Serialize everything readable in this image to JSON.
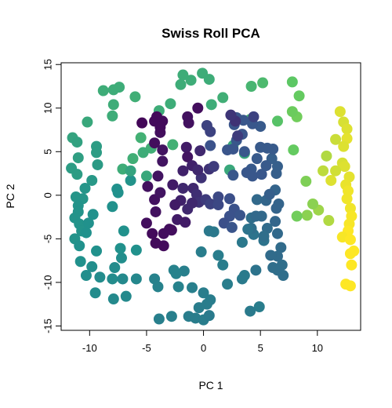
{
  "chart_data": {
    "type": "scatter",
    "title": "Swiss Roll PCA",
    "xlabel": "PC 1",
    "ylabel": "PC 2",
    "xlim": [
      -12.5,
      13.8
    ],
    "ylim": [
      -15.5,
      15.2
    ],
    "xticks": [
      -10,
      -5,
      0,
      5,
      10
    ],
    "yticks": [
      -15,
      -10,
      -5,
      0,
      5,
      10,
      15
    ],
    "x_tick_labels": [
      "-10",
      "-5",
      "0",
      "5",
      "10"
    ],
    "y_tick_labels": [
      "-15",
      "-10",
      "-5",
      "0",
      "5",
      "10",
      "15"
    ],
    "grid": false,
    "legend": "none",
    "color_scale": "viridis",
    "palette": [
      "#440154",
      "#3b528b",
      "#21918c",
      "#5ec962",
      "#fde725"
    ],
    "points": [
      {
        "x": 12.0,
        "y": 9.6,
        "c": 0.95
      },
      {
        "x": 12.3,
        "y": 8.4,
        "c": 0.94
      },
      {
        "x": 12.6,
        "y": 7.6,
        "c": 0.95
      },
      {
        "x": 12.6,
        "y": 6.5,
        "c": 0.96
      },
      {
        "x": 12.3,
        "y": 5.6,
        "c": 0.95
      },
      {
        "x": 11.6,
        "y": 6.4,
        "c": 0.92
      },
      {
        "x": 12.2,
        "y": 3.7,
        "c": 0.94
      },
      {
        "x": 12.4,
        "y": 3.3,
        "c": 0.95
      },
      {
        "x": 11.6,
        "y": 2.8,
        "c": 0.93
      },
      {
        "x": 12.8,
        "y": 2.1,
        "c": 0.96
      },
      {
        "x": 12.5,
        "y": 1.2,
        "c": 0.97
      },
      {
        "x": 12.7,
        "y": 0.5,
        "c": 0.98
      },
      {
        "x": 12.6,
        "y": -0.4,
        "c": 0.98
      },
      {
        "x": 12.9,
        "y": -1.5,
        "c": 0.98
      },
      {
        "x": 13.0,
        "y": -2.4,
        "c": 0.99
      },
      {
        "x": 12.8,
        "y": -3.3,
        "c": 0.99
      },
      {
        "x": 12.7,
        "y": -4.1,
        "c": 1.0
      },
      {
        "x": 12.2,
        "y": -4.8,
        "c": 0.99
      },
      {
        "x": 12.9,
        "y": -5.1,
        "c": 1.0
      },
      {
        "x": 13.2,
        "y": -6.4,
        "c": 1.0
      },
      {
        "x": 12.9,
        "y": -6.7,
        "c": 1.0
      },
      {
        "x": 13.0,
        "y": -8.0,
        "c": 1.0
      },
      {
        "x": 12.5,
        "y": -10.2,
        "c": 1.0
      },
      {
        "x": 12.9,
        "y": -10.4,
        "c": 1.0
      },
      {
        "x": 11.2,
        "y": 1.7,
        "c": 0.95
      },
      {
        "x": 10.5,
        "y": 2.8,
        "c": 0.9
      },
      {
        "x": 10.8,
        "y": 4.5,
        "c": 0.88
      },
      {
        "x": 11.0,
        "y": -2.9,
        "c": 0.88
      },
      {
        "x": 10.1,
        "y": -1.7,
        "c": 0.85
      },
      {
        "x": 9.6,
        "y": -1.0,
        "c": 0.82
      },
      {
        "x": 9.1,
        "y": -2.3,
        "c": 0.82
      },
      {
        "x": 8.2,
        "y": -2.4,
        "c": 0.78
      },
      {
        "x": 9.0,
        "y": 1.6,
        "c": 0.8
      },
      {
        "x": 7.9,
        "y": 5.2,
        "c": 0.76
      },
      {
        "x": 8.2,
        "y": 9.0,
        "c": 0.78
      },
      {
        "x": 7.8,
        "y": 9.6,
        "c": 0.77
      },
      {
        "x": 8.4,
        "y": 11.4,
        "c": 0.76
      },
      {
        "x": 7.8,
        "y": 13.0,
        "c": 0.74
      },
      {
        "x": 6.5,
        "y": 8.5,
        "c": 0.72
      },
      {
        "x": 5.2,
        "y": 12.9,
        "c": 0.68
      },
      {
        "x": 4.2,
        "y": 12.5,
        "c": 0.66
      },
      {
        "x": 4.1,
        "y": 8.7,
        "c": 0.66
      },
      {
        "x": 1.7,
        "y": 11.2,
        "c": 0.63
      },
      {
        "x": 0.7,
        "y": 10.4,
        "c": 0.62
      },
      {
        "x": 0.5,
        "y": 13.3,
        "c": 0.62
      },
      {
        "x": -0.1,
        "y": 14.0,
        "c": 0.62
      },
      {
        "x": -1.1,
        "y": 13.2,
        "c": 0.62
      },
      {
        "x": -1.8,
        "y": 13.8,
        "c": 0.62
      },
      {
        "x": -2.0,
        "y": 12.7,
        "c": 0.62
      },
      {
        "x": -2.9,
        "y": 10.5,
        "c": 0.62
      },
      {
        "x": -3.9,
        "y": 9.7,
        "c": 0.62
      },
      {
        "x": -2.7,
        "y": 5.8,
        "c": 0.64
      },
      {
        "x": -5.5,
        "y": 6.6,
        "c": 0.64
      },
      {
        "x": -4.6,
        "y": 5.4,
        "c": 0.63
      },
      {
        "x": -6.2,
        "y": 4.2,
        "c": 0.63
      },
      {
        "x": -7.1,
        "y": 3.0,
        "c": 0.62
      },
      {
        "x": -6.0,
        "y": 11.3,
        "c": 0.63
      },
      {
        "x": -7.4,
        "y": 12.4,
        "c": 0.62
      },
      {
        "x": -7.9,
        "y": 12.1,
        "c": 0.62
      },
      {
        "x": -8.8,
        "y": 12.0,
        "c": 0.62
      },
      {
        "x": -7.9,
        "y": 10.4,
        "c": 0.62
      },
      {
        "x": -8.0,
        "y": 9.1,
        "c": 0.62
      },
      {
        "x": -10.2,
        "y": 8.4,
        "c": 0.6
      },
      {
        "x": -5.3,
        "y": 4.9,
        "c": 0.62
      },
      {
        "x": -5.0,
        "y": 2.2,
        "c": 0.6
      },
      {
        "x": 2.3,
        "y": 2.9,
        "c": 0.6
      },
      {
        "x": 2.6,
        "y": 5.7,
        "c": 0.6
      },
      {
        "x": 3.6,
        "y": 4.8,
        "c": 0.6
      },
      {
        "x": -11.5,
        "y": 6.6,
        "c": 0.58
      },
      {
        "x": -11.1,
        "y": 6.1,
        "c": 0.57
      },
      {
        "x": -11.0,
        "y": 4.3,
        "c": 0.56
      },
      {
        "x": -11.6,
        "y": 3.1,
        "c": 0.55
      },
      {
        "x": -11.1,
        "y": 2.4,
        "c": 0.55
      },
      {
        "x": -9.4,
        "y": 5.6,
        "c": 0.55
      },
      {
        "x": -9.4,
        "y": 4.9,
        "c": 0.55
      },
      {
        "x": -9.3,
        "y": 3.5,
        "c": 0.54
      },
      {
        "x": -9.8,
        "y": 1.7,
        "c": 0.53
      },
      {
        "x": -10.4,
        "y": 0.8,
        "c": 0.52
      },
      {
        "x": -10.6,
        "y": -0.4,
        "c": 0.52
      },
      {
        "x": -11.2,
        "y": -0.2,
        "c": 0.52
      },
      {
        "x": -11.0,
        "y": -1.2,
        "c": 0.51
      },
      {
        "x": -11.0,
        "y": -1.9,
        "c": 0.51
      },
      {
        "x": -11.3,
        "y": -2.6,
        "c": 0.51
      },
      {
        "x": -10.9,
        "y": -3.3,
        "c": 0.51
      },
      {
        "x": -10.7,
        "y": -4.1,
        "c": 0.51
      },
      {
        "x": -11.3,
        "y": -5.0,
        "c": 0.51
      },
      {
        "x": -10.9,
        "y": -5.8,
        "c": 0.5
      },
      {
        "x": -10.3,
        "y": -4.3,
        "c": 0.5
      },
      {
        "x": -9.7,
        "y": -2.2,
        "c": 0.5
      },
      {
        "x": -10.1,
        "y": -3.2,
        "c": 0.5
      },
      {
        "x": -10.8,
        "y": -7.6,
        "c": 0.5
      },
      {
        "x": -9.4,
        "y": -6.4,
        "c": 0.5
      },
      {
        "x": -9.8,
        "y": -8.2,
        "c": 0.49
      },
      {
        "x": -10.3,
        "y": -9.2,
        "c": 0.49
      },
      {
        "x": -9.1,
        "y": -9.4,
        "c": 0.48
      },
      {
        "x": -7.2,
        "y": -7.2,
        "c": 0.49
      },
      {
        "x": -5.9,
        "y": -6.3,
        "c": 0.5
      },
      {
        "x": -7.3,
        "y": -6.1,
        "c": 0.5
      },
      {
        "x": -8.0,
        "y": -9.6,
        "c": 0.48
      },
      {
        "x": -7.1,
        "y": -9.6,
        "c": 0.47
      },
      {
        "x": -5.9,
        "y": -9.6,
        "c": 0.46
      },
      {
        "x": -9.5,
        "y": -11.2,
        "c": 0.48
      },
      {
        "x": -7.9,
        "y": -11.9,
        "c": 0.47
      },
      {
        "x": -6.8,
        "y": -11.6,
        "c": 0.47
      },
      {
        "x": -7.8,
        "y": -8.3,
        "c": 0.48
      },
      {
        "x": -7.0,
        "y": -4.1,
        "c": 0.5
      },
      {
        "x": -8.0,
        "y": -1.3,
        "c": 0.5
      },
      {
        "x": -7.6,
        "y": 0.7,
        "c": 0.5
      },
      {
        "x": -6.4,
        "y": 1.7,
        "c": 0.51
      },
      {
        "x": -7.5,
        "y": 0.3,
        "c": 0.5
      },
      {
        "x": -4.3,
        "y": -9.6,
        "c": 0.44
      },
      {
        "x": -4.0,
        "y": -10.5,
        "c": 0.44
      },
      {
        "x": -2.6,
        "y": -8.6,
        "c": 0.44
      },
      {
        "x": -1.7,
        "y": -8.7,
        "c": 0.43
      },
      {
        "x": -2.2,
        "y": -10.5,
        "c": 0.44
      },
      {
        "x": -1.0,
        "y": -10.6,
        "c": 0.43
      },
      {
        "x": 0.0,
        "y": -11.2,
        "c": 0.42
      },
      {
        "x": 0.3,
        "y": -12.5,
        "c": 0.42
      },
      {
        "x": -0.4,
        "y": -12.9,
        "c": 0.42
      },
      {
        "x": -3.9,
        "y": -14.2,
        "c": 0.43
      },
      {
        "x": -2.8,
        "y": -13.9,
        "c": 0.43
      },
      {
        "x": -1.3,
        "y": -13.9,
        "c": 0.42
      },
      {
        "x": -0.7,
        "y": -14.1,
        "c": 0.42
      },
      {
        "x": 0.0,
        "y": -14.3,
        "c": 0.42
      },
      {
        "x": 0.5,
        "y": -13.8,
        "c": 0.41
      },
      {
        "x": 2.1,
        "y": -10.2,
        "c": 0.42
      },
      {
        "x": 1.7,
        "y": -8.0,
        "c": 0.42
      },
      {
        "x": 3.6,
        "y": -9.2,
        "c": 0.41
      },
      {
        "x": 3.4,
        "y": -9.6,
        "c": 0.41
      },
      {
        "x": 4.9,
        "y": -12.8,
        "c": 0.42
      },
      {
        "x": 4.1,
        "y": -13.3,
        "c": 0.41
      },
      {
        "x": 4.6,
        "y": -8.6,
        "c": 0.38
      },
      {
        "x": 5.3,
        "y": -5.2,
        "c": 0.38
      },
      {
        "x": 4.4,
        "y": -4.5,
        "c": 0.38
      },
      {
        "x": 4.2,
        "y": -3.8,
        "c": 0.36
      },
      {
        "x": 4.2,
        "y": -2.6,
        "c": 0.36
      },
      {
        "x": 5.1,
        "y": -2.4,
        "c": 0.34
      },
      {
        "x": 4.7,
        "y": -0.5,
        "c": 0.34
      },
      {
        "x": 5.5,
        "y": -0.6,
        "c": 0.33
      },
      {
        "x": 6.6,
        "y": -1.0,
        "c": 0.32
      },
      {
        "x": 6.4,
        "y": -1.5,
        "c": 0.32
      },
      {
        "x": 6.3,
        "y": -3.0,
        "c": 0.33
      },
      {
        "x": 6.5,
        "y": -4.4,
        "c": 0.34
      },
      {
        "x": 6.8,
        "y": -6.0,
        "c": 0.35
      },
      {
        "x": 6.5,
        "y": -7.0,
        "c": 0.35
      },
      {
        "x": 6.9,
        "y": -8.0,
        "c": 0.36
      },
      {
        "x": 6.5,
        "y": -8.6,
        "c": 0.36
      },
      {
        "x": 7.0,
        "y": -9.2,
        "c": 0.36
      },
      {
        "x": 6.1,
        "y": -8.3,
        "c": 0.36
      },
      {
        "x": 5.9,
        "y": -6.9,
        "c": 0.35
      },
      {
        "x": 6.3,
        "y": 0.6,
        "c": 0.32
      },
      {
        "x": 6.4,
        "y": 2.5,
        "c": 0.3
      },
      {
        "x": 6.5,
        "y": 3.3,
        "c": 0.3
      },
      {
        "x": 6.0,
        "y": 4.2,
        "c": 0.3
      },
      {
        "x": 6.1,
        "y": 5.3,
        "c": 0.28
      },
      {
        "x": 5.0,
        "y": 5.5,
        "c": 0.28
      },
      {
        "x": 4.7,
        "y": 4.2,
        "c": 0.28
      },
      {
        "x": 4.2,
        "y": 3.0,
        "c": 0.28
      },
      {
        "x": 4.3,
        "y": 2.2,
        "c": 0.27
      },
      {
        "x": 5.1,
        "y": 2.4,
        "c": 0.27
      },
      {
        "x": 5.5,
        "y": 3.4,
        "c": 0.28
      },
      {
        "x": 5.0,
        "y": 7.9,
        "c": 0.28
      },
      {
        "x": 4.3,
        "y": 8.2,
        "c": 0.27
      },
      {
        "x": 3.5,
        "y": 8.6,
        "c": 0.27
      },
      {
        "x": 2.9,
        "y": 8.9,
        "c": 0.26
      },
      {
        "x": 2.7,
        "y": 8.1,
        "c": 0.26
      },
      {
        "x": 3.4,
        "y": 7.0,
        "c": 0.26
      },
      {
        "x": 2.9,
        "y": 6.3,
        "c": 0.27
      },
      {
        "x": 3.6,
        "y": 5.0,
        "c": 0.27
      },
      {
        "x": 2.6,
        "y": 2.3,
        "c": 0.27
      },
      {
        "x": 2.1,
        "y": 5.2,
        "c": 0.26
      },
      {
        "x": 0.6,
        "y": 5.7,
        "c": 0.25
      },
      {
        "x": 0.6,
        "y": 7.3,
        "c": 0.2
      },
      {
        "x": 0.3,
        "y": 8.0,
        "c": 0.2
      },
      {
        "x": -1.3,
        "y": 8.3,
        "c": 0.05
      },
      {
        "x": -1.5,
        "y": 5.5,
        "c": 0.08
      },
      {
        "x": -1.4,
        "y": 4.4,
        "c": 0.06
      },
      {
        "x": -1.0,
        "y": 3.4,
        "c": 0.1
      },
      {
        "x": -0.3,
        "y": 5.1,
        "c": 0.12
      },
      {
        "x": 0.5,
        "y": 3.0,
        "c": 0.15
      },
      {
        "x": 0.9,
        "y": 3.3,
        "c": 0.18
      },
      {
        "x": -0.2,
        "y": 2.0,
        "c": 0.15
      },
      {
        "x": -1.8,
        "y": 0.8,
        "c": 0.12
      },
      {
        "x": -0.9,
        "y": 0.8,
        "c": 0.12
      },
      {
        "x": -0.6,
        "y": 0.1,
        "c": 0.14
      },
      {
        "x": -0.4,
        "y": -0.8,
        "c": 0.15
      },
      {
        "x": 0.2,
        "y": -0.5,
        "c": 0.18
      },
      {
        "x": 0.6,
        "y": -1.0,
        "c": 0.2
      },
      {
        "x": 1.3,
        "y": -0.2,
        "c": 0.22
      },
      {
        "x": 1.3,
        "y": -1.1,
        "c": 0.22
      },
      {
        "x": 2.3,
        "y": -0.4,
        "c": 0.24
      },
      {
        "x": 2.7,
        "y": -1.6,
        "c": 0.25
      },
      {
        "x": 2.3,
        "y": -2.4,
        "c": 0.25
      },
      {
        "x": 1.8,
        "y": -3.2,
        "c": 0.24
      },
      {
        "x": 2.5,
        "y": -3.7,
        "c": 0.26
      },
      {
        "x": 3.2,
        "y": -2.3,
        "c": 0.26
      },
      {
        "x": -1.4,
        "y": -1.6,
        "c": 0.12
      },
      {
        "x": -2.3,
        "y": -2.8,
        "c": 0.08
      },
      {
        "x": -1.6,
        "y": -3.1,
        "c": 0.08
      },
      {
        "x": -3.0,
        "y": -3.9,
        "c": 0.04
      },
      {
        "x": -2.8,
        "y": -4.0,
        "c": 0.04
      },
      {
        "x": -3.5,
        "y": -4.4,
        "c": 0.04
      },
      {
        "x": -3.5,
        "y": -5.8,
        "c": 0.03
      },
      {
        "x": -4.2,
        "y": -5.5,
        "c": 0.03
      },
      {
        "x": -4.5,
        "y": -4.4,
        "c": 0.03
      },
      {
        "x": -5.0,
        "y": -3.2,
        "c": 0.04
      },
      {
        "x": -4.2,
        "y": -1.9,
        "c": 0.05
      },
      {
        "x": -4.3,
        "y": -0.5,
        "c": 0.05
      },
      {
        "x": -3.8,
        "y": 0.3,
        "c": 0.06
      },
      {
        "x": -4.9,
        "y": 1.0,
        "c": 0.05
      },
      {
        "x": -4.0,
        "y": 2.2,
        "c": 0.06
      },
      {
        "x": -3.6,
        "y": 5.2,
        "c": 0.06
      },
      {
        "x": -3.8,
        "y": 7.2,
        "c": 0.04
      },
      {
        "x": -4.3,
        "y": 8.5,
        "c": 0.03
      },
      {
        "x": -4.3,
        "y": 6.0,
        "c": 0.04
      },
      {
        "x": -5.4,
        "y": 8.3,
        "c": 0.02
      },
      {
        "x": -3.6,
        "y": 8.5,
        "c": 0.03
      },
      {
        "x": -3.8,
        "y": 7.8,
        "c": 0.03
      },
      {
        "x": -2.7,
        "y": 1.2,
        "c": 0.08
      },
      {
        "x": -1.8,
        "y": 2.8,
        "c": 0.1
      },
      {
        "x": -2.0,
        "y": -0.6,
        "c": 0.1
      },
      {
        "x": -1.0,
        "y": -0.9,
        "c": 0.12
      },
      {
        "x": -2.5,
        "y": -1.1,
        "c": 0.08
      },
      {
        "x": -0.5,
        "y": 2.9,
        "c": 0.12
      },
      {
        "x": -0.5,
        "y": 10.0,
        "c": 0.04
      },
      {
        "x": -1.4,
        "y": 9.0,
        "c": 0.05
      },
      {
        "x": 2.8,
        "y": 8.5,
        "c": 0.15
      },
      {
        "x": 3.0,
        "y": 6.8,
        "c": 0.18
      },
      {
        "x": 4.4,
        "y": 9.0,
        "c": 0.2
      },
      {
        "x": 2.4,
        "y": 9.2,
        "c": 0.16
      },
      {
        "x": -4.1,
        "y": 9.0,
        "c": 0.03
      },
      {
        "x": -6.4,
        "y": 2.8,
        "c": 0.58
      },
      {
        "x": -3.6,
        "y": 3.9,
        "c": 0.06
      },
      {
        "x": 3.8,
        "y": 2.6,
        "c": 0.27
      },
      {
        "x": 2.6,
        "y": 5.3,
        "c": 0.26
      },
      {
        "x": 5.6,
        "y": 5.4,
        "c": 0.28
      },
      {
        "x": 5.8,
        "y": 0.1,
        "c": 0.3
      },
      {
        "x": 4.6,
        "y": -2.4,
        "c": 0.34
      },
      {
        "x": 5.6,
        "y": -3.8,
        "c": 0.35
      },
      {
        "x": 5.3,
        "y": -4.7,
        "c": 0.36
      },
      {
        "x": 3.9,
        "y": -3.9,
        "c": 0.38
      },
      {
        "x": 0.5,
        "y": -4.1,
        "c": 0.4
      },
      {
        "x": 0.9,
        "y": -4.2,
        "c": 0.4
      },
      {
        "x": 1.3,
        "y": -6.9,
        "c": 0.42
      },
      {
        "x": -0.2,
        "y": -6.5,
        "c": 0.42
      },
      {
        "x": -2.4,
        "y": -9.0,
        "c": 0.44
      },
      {
        "x": 0.6,
        "y": -12.0,
        "c": 0.42
      },
      {
        "x": 3.4,
        "y": -5.4,
        "c": 0.4
      }
    ]
  }
}
